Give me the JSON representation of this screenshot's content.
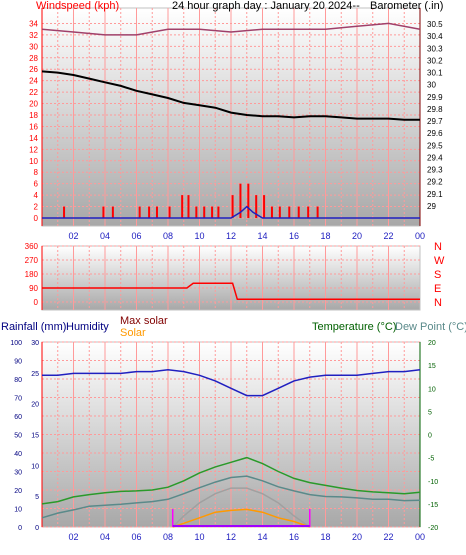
{
  "title": "24 hour graph day : January 20 2024--",
  "colors": {
    "red": "#ff0000",
    "blue": "#2020c0",
    "purple": "#a0406a",
    "black": "#000000",
    "green": "#2a9a2a",
    "teal": "#5a8a8a",
    "orange": "#ff9900",
    "gray": "#a0a0a0",
    "navy": "#000080",
    "maroon": "#800000",
    "darkgreen": "#006000"
  },
  "chart_data": [
    {
      "type": "line",
      "left_label": "Windspeed (kph)",
      "right_label": "Barometer (.in)",
      "left_ticks": [
        "34",
        "32",
        "30",
        "28",
        "26",
        "24",
        "22",
        "20",
        "18",
        "16",
        "14",
        "12",
        "10",
        "8",
        "6",
        "4",
        "2",
        "0"
      ],
      "right_ticks": [
        "30.5",
        "30.4",
        "30.3",
        "30.2",
        "30.1",
        "30",
        "29.9",
        "29.8",
        "29.7",
        "29.6",
        "29.5",
        "29.4",
        "29.3",
        "29.2",
        "29.1",
        "29"
      ],
      "x_ticks": [
        "02",
        "04",
        "06",
        "08",
        "10",
        "12",
        "14",
        "16",
        "18",
        "20",
        "22",
        "00"
      ],
      "left_ylim": [
        0,
        36
      ],
      "right_ylim": [
        28.9,
        30.6
      ],
      "xlim": [
        0,
        24
      ],
      "series": [
        {
          "name": "Barometer",
          "axis": "right",
          "color": "#000000",
          "x": [
            0,
            1,
            2,
            3,
            4,
            5,
            6,
            7,
            8,
            9,
            10,
            11,
            12,
            13,
            14,
            15,
            16,
            17,
            18,
            19,
            20,
            21,
            22,
            23,
            24
          ],
          "y": [
            30.11,
            30.1,
            30.08,
            30.05,
            30.02,
            29.99,
            29.95,
            29.92,
            29.89,
            29.85,
            29.83,
            29.81,
            29.77,
            29.75,
            29.74,
            29.74,
            29.73,
            29.74,
            29.74,
            29.73,
            29.72,
            29.72,
            29.72,
            29.71,
            29.71
          ]
        },
        {
          "name": "Wind avg",
          "axis": "left",
          "color": "#a0406a",
          "x": [
            0,
            2,
            4,
            6,
            8,
            10,
            12,
            14,
            16,
            18,
            20,
            22,
            24
          ],
          "y": [
            33,
            32.5,
            32,
            32,
            33,
            33,
            32.5,
            33,
            33,
            33,
            33.5,
            34,
            33
          ]
        },
        {
          "name": "Gust",
          "axis": "left",
          "color": "#ff0000",
          "x": [
            1.4,
            3.9,
            4.5,
            6.2,
            6.8,
            7.3,
            8.1,
            8.9,
            9.3,
            9.8,
            10.3,
            10.8,
            11.2,
            12.1,
            12.6,
            13.1,
            13.6,
            14.1,
            14.6,
            15.1,
            15.7,
            16.3,
            16.9,
            17.5
          ],
          "y": [
            2,
            2,
            2,
            2,
            2,
            2,
            2,
            4,
            4,
            2,
            2,
            2,
            2,
            4,
            6,
            6,
            4,
            4,
            2,
            2,
            2,
            2,
            2,
            2
          ]
        },
        {
          "name": "Wind",
          "axis": "left",
          "color": "#2020c0",
          "x": [
            0,
            12,
            12.6,
            13,
            13.4,
            14,
            24
          ],
          "y": [
            0,
            0,
            1,
            2,
            1,
            0,
            0
          ]
        }
      ]
    },
    {
      "type": "line",
      "left_ticks": [
        "360",
        "270",
        "180",
        "90",
        "0"
      ],
      "right_ticks": [
        "N",
        "W",
        "S",
        "E",
        "N"
      ],
      "ylim": [
        0,
        360
      ],
      "series": [
        {
          "name": "Wind direction",
          "color": "#ff0000",
          "x": [
            0,
            9.2,
            9.6,
            12.1,
            12.4,
            24
          ],
          "y": [
            90,
            90,
            120,
            120,
            18,
            18
          ]
        }
      ]
    },
    {
      "type": "line",
      "labels": {
        "rainfall": "Rainfall (mm)",
        "humidity": "Humidity",
        "max_solar": "Max solar",
        "solar": "Solar",
        "temperature": "Temperature (°C)",
        "dew_point": "Dew Point (°C)"
      },
      "rain_ticks": [
        "100",
        "90",
        "80",
        "70",
        "60",
        "50",
        "40",
        "30",
        "20",
        "10",
        "0"
      ],
      "humidity_ticks": [
        "30",
        "25",
        "20",
        "15",
        "10",
        "5",
        "0"
      ],
      "temp_ticks": [
        "20",
        "15",
        "10",
        "5",
        "0",
        "-5",
        "-10",
        "-15",
        "-20"
      ],
      "humidity_ylim": [
        0,
        100
      ],
      "temp_ylim": [
        -20,
        20
      ],
      "series": [
        {
          "name": "Humidity",
          "color": "#2020c0",
          "x": [
            0,
            1,
            2,
            3,
            4,
            5,
            6,
            7,
            8,
            9,
            10,
            11,
            12,
            13,
            14,
            15,
            16,
            17,
            18,
            19,
            20,
            21,
            22,
            23,
            24
          ],
          "y": [
            82,
            82,
            83,
            83,
            83,
            83,
            84,
            84,
            85,
            84,
            82,
            79,
            75,
            71,
            71,
            75,
            79,
            81,
            82,
            82,
            82,
            83,
            84,
            84,
            85
          ]
        },
        {
          "name": "Temperature",
          "color": "#2a9a2a",
          "x": [
            0,
            1,
            2,
            3,
            4,
            5,
            6,
            7,
            8,
            9,
            10,
            11,
            12,
            13,
            14,
            15,
            16,
            17,
            18,
            19,
            20,
            21,
            22,
            23,
            24
          ],
          "y": [
            -15,
            -14.5,
            -13.5,
            -13,
            -12.6,
            -12.3,
            -12.2,
            -12,
            -11.4,
            -10,
            -8.3,
            -7,
            -6,
            -5,
            -6.3,
            -8,
            -9.5,
            -10.4,
            -11,
            -11.6,
            -12.1,
            -12.4,
            -12.6,
            -12.8,
            -12.5
          ]
        },
        {
          "name": "Dew Point",
          "color": "#5a8a8a",
          "x": [
            0,
            1,
            2,
            3,
            4,
            5,
            6,
            7,
            8,
            9,
            10,
            11,
            12,
            13,
            14,
            15,
            16,
            17,
            18,
            19,
            20,
            21,
            22,
            23,
            24
          ],
          "y": [
            -18,
            -17,
            -16.3,
            -15.5,
            -15.3,
            -15.1,
            -14.8,
            -14.5,
            -14,
            -12.8,
            -11.5,
            -10.3,
            -9.3,
            -9,
            -10,
            -11.3,
            -12.2,
            -13,
            -13.4,
            -13.5,
            -13.7,
            -14,
            -14,
            -14.3,
            -14.2
          ]
        },
        {
          "name": "Max solar",
          "color": "#a0a0a0",
          "x": [
            8.3,
            9,
            10,
            11,
            12,
            13,
            14,
            15,
            16,
            17
          ],
          "y": [
            0,
            6,
            13,
            18,
            21,
            21,
            18,
            13,
            6,
            0
          ]
        },
        {
          "name": "Solar",
          "color": "#ff9900",
          "x": [
            8.3,
            9,
            10,
            11,
            12,
            13,
            14,
            15,
            16,
            17
          ],
          "y": [
            0,
            2,
            5,
            8,
            9,
            9.5,
            8,
            5,
            3,
            0
          ]
        }
      ]
    }
  ]
}
